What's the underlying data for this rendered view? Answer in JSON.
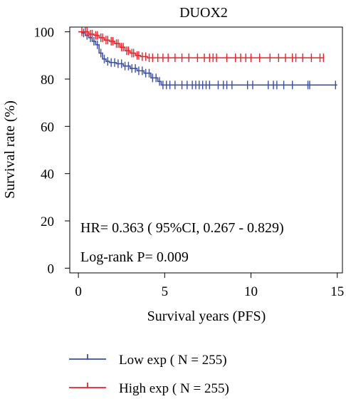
{
  "chart_data": {
    "type": "line",
    "subtype": "kaplan-meier",
    "title": "DUOX2",
    "xlabel": "Survival years (PFS)",
    "ylabel": "Survival rate (%)",
    "xlim": [
      -0.5,
      15.3
    ],
    "ylim": [
      -2,
      102
    ],
    "x_ticks": [
      0,
      5,
      10,
      15
    ],
    "y_ticks": [
      0,
      20,
      40,
      60,
      80,
      100
    ],
    "grid": false,
    "annotations": {
      "hr": "HR= 0.363 ( 95%CI, 0.267 - 0.829)",
      "pvalue": "Log-rank P= 0.009"
    },
    "legend_position": "bottom",
    "series": [
      {
        "name": "Low exp ( N = 255)",
        "color": "#3a4fa8",
        "x": [
          0,
          0.2,
          0.4,
          0.6,
          0.8,
          1.0,
          1.2,
          1.4,
          1.6,
          1.8,
          2.2,
          2.6,
          3.0,
          3.4,
          3.8,
          4.2,
          4.6,
          4.8,
          5.5,
          15.0
        ],
        "y": [
          100,
          99.5,
          98.5,
          97.5,
          96,
          94.5,
          91,
          88.5,
          87.5,
          87,
          86.5,
          85.5,
          84.5,
          83.5,
          82.5,
          80.5,
          79,
          77.5,
          77.5,
          77.5
        ],
        "censor_x": [
          0.3,
          0.5,
          0.7,
          0.9,
          1.1,
          1.3,
          1.5,
          1.7,
          1.9,
          2.1,
          2.3,
          2.5,
          2.7,
          2.9,
          3.1,
          3.3,
          3.5,
          3.7,
          3.9,
          4.1,
          4.3,
          4.5,
          4.7,
          4.9,
          5.1,
          5.3,
          5.6,
          6.0,
          6.3,
          6.6,
          6.8,
          7.0,
          7.2,
          7.4,
          7.6,
          8.1,
          8.4,
          8.6,
          8.9,
          9.8,
          10.1,
          11.0,
          11.3,
          11.5,
          11.9,
          12.4,
          13.3,
          13.4,
          14.9
        ]
      },
      {
        "name": "High exp ( N = 255)",
        "color": "#e8232a",
        "x": [
          0,
          0.3,
          0.6,
          0.9,
          1.2,
          1.5,
          1.8,
          2.1,
          2.4,
          2.7,
          3.0,
          3.3,
          3.6,
          4.0,
          4.5,
          5.0,
          14.2
        ],
        "y": [
          100,
          100,
          99,
          98.5,
          97.5,
          96.5,
          96,
          95,
          93.5,
          92,
          91,
          90,
          89.5,
          89,
          89,
          89,
          89
        ],
        "censor_x": [
          0.2,
          0.4,
          0.5,
          0.7,
          0.8,
          1.0,
          1.1,
          1.3,
          1.4,
          1.6,
          1.7,
          1.9,
          2.0,
          2.2,
          2.3,
          2.5,
          2.6,
          2.8,
          2.9,
          3.1,
          3.2,
          3.4,
          3.5,
          3.7,
          3.9,
          4.1,
          4.3,
          4.6,
          4.9,
          5.2,
          5.6,
          6.0,
          6.4,
          6.9,
          7.3,
          7.6,
          7.8,
          8.0,
          8.6,
          9.1,
          9.4,
          9.7,
          10.0,
          10.5,
          11.1,
          11.6,
          12.0,
          12.4,
          12.6,
          13.0,
          13.5,
          14.0,
          14.2
        ]
      }
    ]
  }
}
